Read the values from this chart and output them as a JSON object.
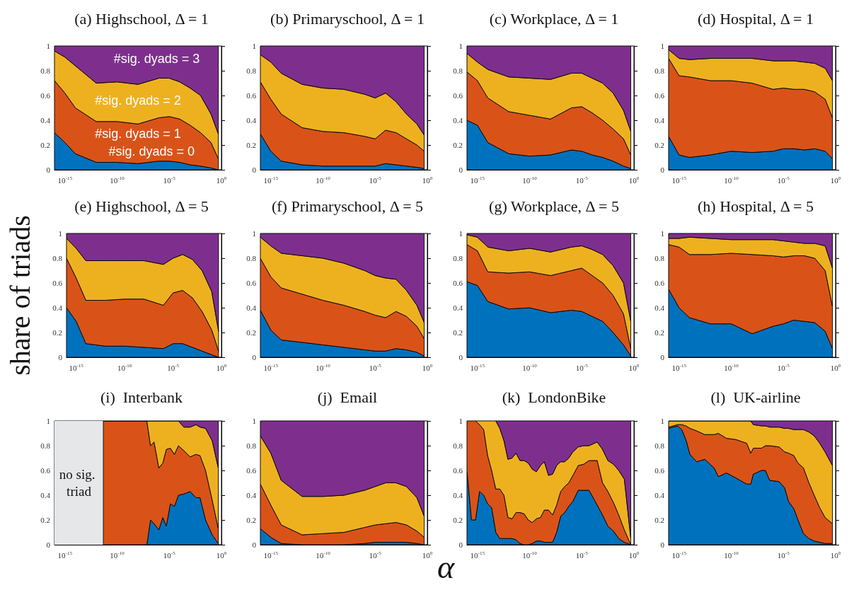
{
  "chart_data": [
    {
      "type": "area",
      "stacked": true,
      "log": "x",
      "title": "(a) Highschool, Δ = 1",
      "x": [
        1e-16,
        1e-15,
        1e-14,
        1e-12,
        1e-10,
        1e-08,
        1e-06,
        1e-05,
        0.0001,
        0.001,
        0.01,
        0.1,
        0.5
      ],
      "xlim": [
        1e-16,
        1
      ],
      "xticks": [
        {
          "value": 1e-15,
          "label": "10$^{-15}$"
        },
        {
          "value": 1e-10,
          "label": "10$^{-10}$"
        },
        {
          "value": 1e-05,
          "label": "10$^{-5}$"
        },
        {
          "value": 1,
          "label": "10$^{0}$"
        }
      ],
      "ylim": [
        0,
        1
      ],
      "yticks": [
        0,
        0.2,
        0.4,
        0.6,
        0.8,
        1
      ],
      "series": [
        {
          "name": "#sig. dyads = 0",
          "color": "#0072bd",
          "values": [
            0.3,
            0.22,
            0.13,
            0.06,
            0.06,
            0.05,
            0.07,
            0.07,
            0.06,
            0.04,
            0.03,
            0.015,
            0
          ]
        },
        {
          "name": "#sig. dyads = 1",
          "color": "#d95319",
          "values": [
            0.42,
            0.4,
            0.37,
            0.33,
            0.33,
            0.32,
            0.35,
            0.36,
            0.35,
            0.32,
            0.27,
            0.205,
            0.09
          ]
        },
        {
          "name": "#sig. dyads = 2",
          "color": "#edb120",
          "values": [
            0.24,
            0.29,
            0.34,
            0.31,
            0.32,
            0.32,
            0.32,
            0.31,
            0.3,
            0.3,
            0.3,
            0.23,
            0.2
          ]
        },
        {
          "name": "#sig. dyads = 3",
          "color": "#7e2f8e",
          "values": [
            0.04,
            0.09,
            0.16,
            0.3,
            0.29,
            0.31,
            0.26,
            0.26,
            0.29,
            0.34,
            0.4,
            0.55,
            0.71
          ]
        }
      ]
    },
    {
      "type": "area",
      "stacked": true,
      "log": "x",
      "title": "(b) Primaryschool, Δ = 1",
      "x": [
        1e-16,
        1e-15,
        1e-14,
        1e-12,
        1e-10,
        1e-08,
        1e-06,
        1e-05,
        0.0001,
        0.001,
        0.01,
        0.1,
        0.5
      ],
      "xlim": [
        1e-16,
        1
      ],
      "xticks": [
        {
          "value": 1e-15,
          "label": "10$^{-15}$"
        },
        {
          "value": 1e-10,
          "label": "10$^{-10}$"
        },
        {
          "value": 1e-05,
          "label": "10$^{-5}$"
        },
        {
          "value": 1,
          "label": "10$^{0}$"
        }
      ],
      "ylim": [
        0,
        1
      ],
      "yticks": [
        0,
        0.2,
        0.4,
        0.6,
        0.8,
        1
      ],
      "series": [
        {
          "color": "#0072bd",
          "values": [
            0.29,
            0.15,
            0.07,
            0.04,
            0.03,
            0.03,
            0.03,
            0.03,
            0.05,
            0.04,
            0.03,
            0.02,
            0.01
          ]
        },
        {
          "color": "#d95319",
          "values": [
            0.42,
            0.42,
            0.38,
            0.3,
            0.28,
            0.27,
            0.24,
            0.22,
            0.27,
            0.26,
            0.22,
            0.18,
            0.14
          ]
        },
        {
          "color": "#edb120",
          "values": [
            0.22,
            0.3,
            0.33,
            0.35,
            0.35,
            0.35,
            0.34,
            0.33,
            0.3,
            0.25,
            0.2,
            0.17,
            0.13
          ]
        },
        {
          "color": "#7e2f8e",
          "values": [
            0.07,
            0.13,
            0.22,
            0.31,
            0.34,
            0.35,
            0.39,
            0.42,
            0.38,
            0.45,
            0.55,
            0.63,
            0.72
          ]
        }
      ]
    },
    {
      "type": "area",
      "stacked": true,
      "log": "x",
      "title": "(c) Workplace, Δ = 1",
      "x": [
        1e-16,
        1e-15,
        1e-14,
        1e-12,
        1e-10,
        1e-08,
        1e-06,
        1e-05,
        0.0001,
        0.001,
        0.01,
        0.1,
        0.5
      ],
      "xlim": [
        1e-16,
        1
      ],
      "xticks": [
        {
          "value": 1e-15,
          "label": "10$^{-15}$"
        },
        {
          "value": 1e-10,
          "label": "10$^{-10}$"
        },
        {
          "value": 1e-05,
          "label": "10$^{-5}$"
        },
        {
          "value": 1,
          "label": "10$^{0}$"
        }
      ],
      "ylim": [
        0,
        1
      ],
      "yticks": [
        0,
        0.2,
        0.4,
        0.6,
        0.8,
        1
      ],
      "series": [
        {
          "color": "#0072bd",
          "values": [
            0.4,
            0.36,
            0.22,
            0.13,
            0.11,
            0.12,
            0.16,
            0.15,
            0.12,
            0.1,
            0.07,
            0.03,
            0.01
          ]
        },
        {
          "color": "#d95319",
          "values": [
            0.39,
            0.36,
            0.36,
            0.34,
            0.33,
            0.29,
            0.34,
            0.36,
            0.34,
            0.3,
            0.26,
            0.22,
            0.11
          ]
        },
        {
          "color": "#edb120",
          "values": [
            0.15,
            0.15,
            0.23,
            0.28,
            0.3,
            0.32,
            0.28,
            0.27,
            0.28,
            0.3,
            0.29,
            0.23,
            0.19
          ]
        },
        {
          "color": "#7e2f8e",
          "values": [
            0.06,
            0.13,
            0.19,
            0.25,
            0.26,
            0.27,
            0.22,
            0.22,
            0.26,
            0.3,
            0.38,
            0.52,
            0.69
          ]
        }
      ]
    },
    {
      "type": "area",
      "stacked": true,
      "log": "x",
      "title": "(d) Hospital, Δ = 1",
      "x": [
        1e-16,
        1e-15,
        1e-14,
        1e-12,
        1e-10,
        1e-08,
        1e-06,
        1e-05,
        0.0001,
        0.001,
        0.01,
        0.1,
        0.5
      ],
      "xlim": [
        1e-16,
        1
      ],
      "xticks": [
        {
          "value": 1e-15,
          "label": "10$^{-15}$"
        },
        {
          "value": 1e-10,
          "label": "10$^{-10}$"
        },
        {
          "value": 1e-05,
          "label": "10$^{-5}$"
        },
        {
          "value": 1,
          "label": "10$^{0}$"
        }
      ],
      "ylim": [
        0,
        1
      ],
      "yticks": [
        0,
        0.2,
        0.4,
        0.6,
        0.8,
        1
      ],
      "series": [
        {
          "color": "#0072bd",
          "values": [
            0.27,
            0.12,
            0.1,
            0.12,
            0.15,
            0.14,
            0.15,
            0.17,
            0.17,
            0.16,
            0.17,
            0.15,
            0.09
          ]
        },
        {
          "color": "#d95319",
          "values": [
            0.63,
            0.64,
            0.65,
            0.6,
            0.57,
            0.56,
            0.5,
            0.49,
            0.48,
            0.49,
            0.46,
            0.42,
            0.33
          ]
        },
        {
          "color": "#edb120",
          "values": [
            0.07,
            0.14,
            0.14,
            0.18,
            0.18,
            0.2,
            0.23,
            0.22,
            0.23,
            0.22,
            0.23,
            0.25,
            0.3
          ]
        },
        {
          "color": "#7e2f8e",
          "values": [
            0.03,
            0.1,
            0.11,
            0.1,
            0.1,
            0.1,
            0.12,
            0.12,
            0.12,
            0.13,
            0.14,
            0.18,
            0.28
          ]
        }
      ]
    },
    {
      "type": "area",
      "stacked": true,
      "log": "x",
      "title": "(e) Highschool, Δ = 5",
      "ylabel": "share of triads",
      "x": [
        1e-16,
        1e-15,
        1e-14,
        1e-12,
        1e-10,
        1e-08,
        1e-06,
        1e-05,
        0.0001,
        0.001,
        0.01,
        0.1,
        0.5
      ],
      "xlim": [
        1e-16,
        1
      ],
      "xticks": [
        {
          "value": 1e-15,
          "label": "10$^{-15}$"
        },
        {
          "value": 1e-10,
          "label": "10$^{-10}$"
        },
        {
          "value": 1e-05,
          "label": "10$^{-5}$"
        },
        {
          "value": 1,
          "label": "10$^{0}$"
        }
      ],
      "ylim": [
        0,
        1
      ],
      "yticks": [
        0,
        0.2,
        0.4,
        0.6,
        0.8,
        1
      ],
      "series": [
        {
          "color": "#0072bd",
          "values": [
            0.4,
            0.29,
            0.11,
            0.09,
            0.09,
            0.08,
            0.07,
            0.11,
            0.11,
            0.08,
            0.05,
            0.02,
            0
          ]
        },
        {
          "color": "#d95319",
          "values": [
            0.4,
            0.35,
            0.35,
            0.37,
            0.38,
            0.39,
            0.35,
            0.41,
            0.43,
            0.4,
            0.32,
            0.2,
            0.05
          ]
        },
        {
          "color": "#edb120",
          "values": [
            0.16,
            0.24,
            0.32,
            0.32,
            0.31,
            0.31,
            0.33,
            0.28,
            0.29,
            0.31,
            0.33,
            0.31,
            0.16
          ]
        },
        {
          "color": "#7e2f8e",
          "values": [
            0.04,
            0.12,
            0.22,
            0.22,
            0.22,
            0.22,
            0.25,
            0.2,
            0.17,
            0.21,
            0.3,
            0.47,
            0.79
          ]
        }
      ]
    },
    {
      "type": "area",
      "stacked": true,
      "log": "x",
      "title": "(f) Primaryschool, Δ = 5",
      "x": [
        1e-16,
        1e-15,
        1e-14,
        1e-12,
        1e-10,
        1e-08,
        1e-06,
        1e-05,
        0.0001,
        0.001,
        0.01,
        0.1,
        0.5
      ],
      "xlim": [
        1e-16,
        1
      ],
      "xticks": [
        {
          "value": 1e-15,
          "label": "10$^{-15}$"
        },
        {
          "value": 1e-10,
          "label": "10$^{-10}$"
        },
        {
          "value": 1e-05,
          "label": "10$^{-5}$"
        },
        {
          "value": 1,
          "label": "10$^{0}$"
        }
      ],
      "ylim": [
        0,
        1
      ],
      "yticks": [
        0,
        0.2,
        0.4,
        0.6,
        0.8,
        1
      ],
      "series": [
        {
          "color": "#0072bd",
          "values": [
            0.38,
            0.22,
            0.14,
            0.12,
            0.1,
            0.08,
            0.06,
            0.05,
            0.05,
            0.07,
            0.06,
            0.04,
            0.01
          ]
        },
        {
          "color": "#d95319",
          "values": [
            0.42,
            0.43,
            0.42,
            0.39,
            0.36,
            0.34,
            0.31,
            0.29,
            0.27,
            0.3,
            0.27,
            0.21,
            0.14
          ]
        },
        {
          "color": "#edb120",
          "values": [
            0.17,
            0.25,
            0.28,
            0.31,
            0.34,
            0.34,
            0.33,
            0.32,
            0.32,
            0.26,
            0.21,
            0.17,
            0.13
          ]
        },
        {
          "color": "#7e2f8e",
          "values": [
            0.03,
            0.1,
            0.16,
            0.18,
            0.2,
            0.24,
            0.3,
            0.34,
            0.36,
            0.37,
            0.46,
            0.58,
            0.72
          ]
        }
      ]
    },
    {
      "type": "area",
      "stacked": true,
      "log": "x",
      "title": "(g) Workplace, Δ = 5",
      "x": [
        1e-16,
        1e-15,
        1e-14,
        1e-12,
        1e-10,
        1e-08,
        1e-06,
        1e-05,
        0.0001,
        0.001,
        0.01,
        0.1,
        0.5
      ],
      "xlim": [
        1e-16,
        1
      ],
      "xticks": [
        {
          "value": 1e-15,
          "label": "10$^{-15}$"
        },
        {
          "value": 1e-10,
          "label": "10$^{-10}$"
        },
        {
          "value": 1e-05,
          "label": "10$^{-5}$"
        },
        {
          "value": 1,
          "label": "10$^{0}$"
        }
      ],
      "ylim": [
        0,
        1
      ],
      "yticks": [
        0,
        0.2,
        0.4,
        0.6,
        0.8,
        1
      ],
      "series": [
        {
          "color": "#0072bd",
          "values": [
            0.61,
            0.58,
            0.45,
            0.39,
            0.4,
            0.36,
            0.38,
            0.37,
            0.33,
            0.29,
            0.2,
            0.1,
            0.01
          ]
        },
        {
          "color": "#d95319",
          "values": [
            0.3,
            0.28,
            0.24,
            0.29,
            0.29,
            0.3,
            0.32,
            0.35,
            0.33,
            0.31,
            0.3,
            0.25,
            0.06
          ]
        },
        {
          "color": "#edb120",
          "values": [
            0.08,
            0.11,
            0.2,
            0.18,
            0.19,
            0.19,
            0.19,
            0.18,
            0.21,
            0.23,
            0.24,
            0.25,
            0.22
          ]
        },
        {
          "color": "#7e2f8e",
          "values": [
            0.01,
            0.03,
            0.11,
            0.14,
            0.12,
            0.15,
            0.11,
            0.1,
            0.13,
            0.17,
            0.26,
            0.4,
            0.71
          ]
        }
      ]
    },
    {
      "type": "area",
      "stacked": true,
      "log": "x",
      "title": "(h) Hospital, Δ = 5",
      "x": [
        1e-16,
        1e-15,
        1e-14,
        1e-12,
        1e-10,
        1e-08,
        1e-06,
        1e-05,
        0.0001,
        0.001,
        0.01,
        0.1,
        0.5
      ],
      "xlim": [
        1e-16,
        1
      ],
      "xticks": [
        {
          "value": 1e-15,
          "label": "10$^{-15}$"
        },
        {
          "value": 1e-10,
          "label": "10$^{-10}$"
        },
        {
          "value": 1e-05,
          "label": "10$^{-5}$"
        },
        {
          "value": 1,
          "label": "10$^{0}$"
        }
      ],
      "ylim": [
        0,
        1
      ],
      "yticks": [
        0,
        0.2,
        0.4,
        0.6,
        0.8,
        1
      ],
      "series": [
        {
          "color": "#0072bd",
          "values": [
            0.55,
            0.4,
            0.32,
            0.27,
            0.27,
            0.19,
            0.25,
            0.27,
            0.3,
            0.29,
            0.28,
            0.21,
            0.07
          ]
        },
        {
          "color": "#d95319",
          "values": [
            0.36,
            0.49,
            0.51,
            0.56,
            0.57,
            0.64,
            0.57,
            0.54,
            0.52,
            0.53,
            0.52,
            0.49,
            0.34
          ]
        },
        {
          "color": "#edb120",
          "values": [
            0.05,
            0.07,
            0.14,
            0.13,
            0.11,
            0.12,
            0.13,
            0.13,
            0.11,
            0.1,
            0.12,
            0.2,
            0.31
          ]
        },
        {
          "color": "#7e2f8e",
          "values": [
            0.04,
            0.04,
            0.03,
            0.04,
            0.05,
            0.05,
            0.05,
            0.06,
            0.07,
            0.08,
            0.08,
            0.1,
            0.28
          ]
        }
      ]
    },
    {
      "type": "area",
      "stacked": true,
      "log": "x",
      "title": "(i)  Interbank",
      "x": [
        4.8e-12,
        7.1e-08,
        1.6e-07,
        3.5e-07,
        1e-06,
        2.4e-06,
        5.2e-06,
        1.26e-05,
        3.1e-05,
        7.6e-05,
        0.00025,
        0.001,
        0.0036,
        0.0089,
        0.03,
        0.13,
        0.5
      ],
      "xlim": [
        1e-16,
        1
      ],
      "xticks": [
        {
          "value": 1e-15,
          "label": "10$^{-15}$"
        },
        {
          "value": 1e-10,
          "label": "10$^{-10}$"
        },
        {
          "value": 1e-05,
          "label": "10$^{-5}$"
        },
        {
          "value": 1,
          "label": "10$^{0}$"
        }
      ],
      "ylim": [
        0,
        1
      ],
      "yticks": [
        0,
        0.2,
        0.4,
        0.6,
        0.8,
        1
      ],
      "bands": [
        {
          "axis": "x",
          "from": 1e-16,
          "to": 4.8e-12,
          "label": "no sig. triad",
          "color": "#e6e7e9"
        }
      ],
      "series": [
        {
          "color": "#0072bd",
          "values": [
            0,
            0,
            0.2,
            0.17,
            0.12,
            0.22,
            0.15,
            0.33,
            0.31,
            0.4,
            0.41,
            0.43,
            0.38,
            0.38,
            0.2,
            0.08,
            0.01
          ]
        },
        {
          "color": "#d95319",
          "values": [
            1,
            1,
            0.6,
            0.66,
            0.5,
            0.44,
            0.62,
            0.45,
            0.42,
            0.4,
            0.35,
            0.28,
            0.35,
            0.34,
            0.4,
            0.28,
            0.12
          ]
        },
        {
          "color": "#edb120",
          "values": [
            0,
            0,
            0.2,
            0.17,
            0.38,
            0.34,
            0.23,
            0.22,
            0.27,
            0.2,
            0.19,
            0.24,
            0.24,
            0.23,
            0.34,
            0.48,
            0.49
          ]
        },
        {
          "color": "#7e2f8e",
          "values": [
            0,
            0,
            0,
            0,
            0,
            0,
            0,
            0,
            0,
            0,
            0.05,
            0.05,
            0.03,
            0.05,
            0.06,
            0.16,
            0.38
          ]
        }
      ]
    },
    {
      "type": "area",
      "stacked": true,
      "log": "x",
      "title": "(j)  Email",
      "xlabel": "α",
      "x": [
        1e-16,
        1e-15,
        1e-14,
        1e-12,
        1e-10,
        1e-08,
        1e-06,
        1e-05,
        0.0001,
        0.001,
        0.01,
        0.1,
        0.5
      ],
      "xlim": [
        1e-16,
        1
      ],
      "xticks": [
        {
          "value": 1e-15,
          "label": "10$^{-15}$"
        },
        {
          "value": 1e-10,
          "label": "10$^{-10}$"
        },
        {
          "value": 1e-05,
          "label": "10$^{-5}$"
        },
        {
          "value": 1,
          "label": "10$^{0}$"
        }
      ],
      "ylim": [
        0,
        1
      ],
      "yticks": [
        0,
        0.2,
        0.4,
        0.6,
        0.8,
        1
      ],
      "series": [
        {
          "color": "#0072bd",
          "values": [
            0.13,
            0.06,
            0.01,
            0,
            0,
            0,
            0.01,
            0.02,
            0.02,
            0.02,
            0.02,
            0.01,
            0
          ]
        },
        {
          "color": "#d95319",
          "values": [
            0.36,
            0.26,
            0.15,
            0.08,
            0.09,
            0.1,
            0.13,
            0.14,
            0.15,
            0.16,
            0.14,
            0.1,
            0.06
          ]
        },
        {
          "color": "#edb120",
          "values": [
            0.39,
            0.42,
            0.36,
            0.31,
            0.3,
            0.3,
            0.3,
            0.31,
            0.33,
            0.32,
            0.31,
            0.27,
            0.17
          ]
        },
        {
          "color": "#7e2f8e",
          "values": [
            0.12,
            0.26,
            0.48,
            0.61,
            0.61,
            0.6,
            0.56,
            0.53,
            0.5,
            0.5,
            0.53,
            0.62,
            0.77
          ]
        }
      ]
    },
    {
      "type": "area",
      "stacked": true,
      "log": "x",
      "title": "(k)  LondonBike",
      "x": [
        1e-16,
        2.7e-16,
        6.6e-16,
        1.6e-15,
        4e-15,
        9.6e-15,
        2.3e-14,
        5.8e-14,
        1.4e-13,
        3.5e-13,
        8.5e-13,
        2.1e-12,
        5e-12,
        1.2e-11,
        3e-11,
        7.4e-11,
        1.8e-10,
        4.5e-10,
        1.1e-09,
        2.6e-09,
        6.5e-09,
        1.6e-08,
        3.9e-08,
        9.5e-08,
        2.3e-07,
        5.7e-07,
        1.4e-06,
        4.6e-06,
        1.5e-05,
        5e-05,
        0.0003,
        0.00098,
        0.0032,
        0.011,
        0.035,
        0.12,
        0.5
      ],
      "xlim": [
        1e-16,
        1
      ],
      "xticks": [
        {
          "value": 1e-15,
          "label": "10$^{-15}$"
        },
        {
          "value": 1e-10,
          "label": "10$^{-10}$"
        },
        {
          "value": 1e-05,
          "label": "10$^{-5}$"
        },
        {
          "value": 1,
          "label": "10$^{0}$"
        }
      ],
      "ylim": [
        0,
        1
      ],
      "yticks": [
        0,
        0.2,
        0.4,
        0.6,
        0.8,
        1
      ],
      "series": [
        {
          "color": "#0072bd",
          "values": [
            0.6,
            0.2,
            0.2,
            0.43,
            0.4,
            0.33,
            0.3,
            0.1,
            0.05,
            0.05,
            0.05,
            0.05,
            0.04,
            0.01,
            0,
            0,
            0.01,
            0.03,
            0.03,
            0.02,
            0.02,
            0.02,
            0.1,
            0.23,
            0.26,
            0.31,
            0.35,
            0.44,
            0.44,
            0.44,
            0.32,
            0.24,
            0.15,
            0.11,
            0.05,
            0.02,
            0
          ]
        },
        {
          "color": "#d95319",
          "values": [
            0.4,
            0.8,
            0.8,
            0.54,
            0.53,
            0.39,
            0.3,
            0.35,
            0.4,
            0.35,
            0.17,
            0.16,
            0.22,
            0.25,
            0.25,
            0.2,
            0.17,
            0.18,
            0.19,
            0.26,
            0.26,
            0.22,
            0.22,
            0.2,
            0.21,
            0.19,
            0.21,
            0.2,
            0.21,
            0.24,
            0.36,
            0.26,
            0.28,
            0.23,
            0.19,
            0.1,
            0
          ]
        },
        {
          "color": "#edb120",
          "values": [
            null,
            null,
            0,
            0.03,
            0.07,
            0.28,
            0.4,
            0.55,
            0.49,
            0.44,
            0.47,
            0.49,
            0.48,
            0.42,
            0.43,
            0.46,
            0.43,
            0.38,
            0.42,
            0.39,
            0.28,
            0.33,
            0.32,
            0.24,
            0.2,
            0.2,
            0.19,
            0.15,
            0.15,
            0.12,
            0.15,
            0.27,
            0.25,
            0.31,
            0.36,
            0.41,
            0.05
          ]
        },
        {
          "color": "#7e2f8e",
          "values": [
            null,
            null,
            null,
            null,
            null,
            null,
            null,
            0,
            0.06,
            0.16,
            0.31,
            0.3,
            0.26,
            0.32,
            0.32,
            0.34,
            0.39,
            0.41,
            0.36,
            0.33,
            0.44,
            0.43,
            0.36,
            0.33,
            0.33,
            0.3,
            0.25,
            0.21,
            0.2,
            0.2,
            0.17,
            0.23,
            0.32,
            0.35,
            0.4,
            0.47,
            0.95
          ]
        }
      ]
    },
    {
      "type": "area",
      "stacked": true,
      "log": "x",
      "title": "(l)  UK-airline",
      "x": [
        1e-16,
        7.4e-16,
        1.8e-15,
        4.5e-15,
        1.1e-14,
        4.8e-14,
        2.9e-13,
        2.3e-12,
        5.8e-12,
        3.4e-11,
        2.7e-10,
        3e-09,
        7.4e-09,
        1.3e-08,
        7.9e-08,
        1.9e-07,
        4.8e-07,
        3.9e-06,
        1.3e-05,
        3.1e-05,
        0.0001,
        0.00025,
        0.00083,
        0.0028,
        0.0089,
        0.03,
        0.098,
        0.5
      ],
      "xlim": [
        1e-16,
        1
      ],
      "xticks": [
        {
          "value": 1e-15,
          "label": "10$^{-15}$"
        },
        {
          "value": 1e-10,
          "label": "10$^{-10}$"
        },
        {
          "value": 1e-05,
          "label": "10$^{-5}$"
        },
        {
          "value": 1,
          "label": "10$^{0}$"
        }
      ],
      "ylim": [
        0,
        1
      ],
      "yticks": [
        0,
        0.2,
        0.4,
        0.6,
        0.8,
        1
      ],
      "series": [
        {
          "color": "#0072bd",
          "values": [
            0.94,
            0.96,
            0.93,
            0.85,
            0.73,
            0.67,
            0.69,
            0.62,
            0.55,
            0.58,
            0.54,
            0.49,
            0.49,
            0.57,
            0.6,
            0.6,
            0.52,
            0.51,
            0.46,
            0.35,
            0.29,
            0.2,
            0.09,
            0.05,
            0.03,
            0.02,
            0.01,
            0.01
          ]
        },
        {
          "color": "#d95319",
          "values": [
            0.01,
            0.01,
            0.04,
            0.11,
            0.21,
            0.25,
            0.2,
            0.27,
            0.35,
            0.28,
            0.31,
            0.33,
            0.25,
            0.21,
            0.18,
            0.2,
            0.28,
            0.28,
            0.29,
            0.39,
            0.43,
            0.46,
            0.53,
            0.45,
            0.37,
            0.28,
            0.21,
            0.16
          ]
        },
        {
          "color": "#edb120",
          "values": [
            0.05,
            0.03,
            0.03,
            0.04,
            0.06,
            0.08,
            0.11,
            0.11,
            0.1,
            0.14,
            0.15,
            0.18,
            0.26,
            0.19,
            0.18,
            0.16,
            0.15,
            0.16,
            0.19,
            0.2,
            0.21,
            0.27,
            0.31,
            0.41,
            0.48,
            0.52,
            0.53,
            0.47
          ]
        },
        {
          "color": "#7e2f8e",
          "values": [
            0,
            0,
            0,
            0,
            0,
            0,
            0,
            0,
            0,
            0,
            0,
            0,
            0,
            0.03,
            0.04,
            0.04,
            0.05,
            0.05,
            0.06,
            0.06,
            0.07,
            0.07,
            0.07,
            0.09,
            0.12,
            0.18,
            0.25,
            0.36
          ]
        }
      ]
    }
  ]
}
